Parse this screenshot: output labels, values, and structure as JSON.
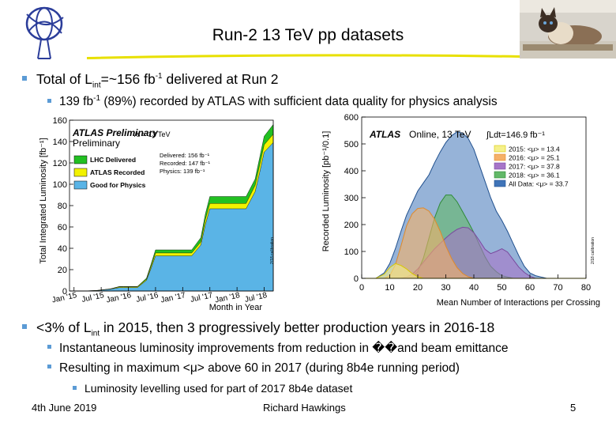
{
  "slide": {
    "title": "Run-2 13 TeV pp datasets",
    "bullets": {
      "b1_prefix": "Total of  L",
      "b1_sub": "int",
      "b1_mid": "=~156 fb",
      "b1_sup": "-1",
      "b1_suffix": " delivered at Run 2",
      "b1a_prefix": "139 fb",
      "b1a_sup": "-1",
      "b1a_suffix": " (89%) recorded by ATLAS with sufficient data quality for physics analysis",
      "b2_prefix": "<3% of L",
      "b2_sub": "int",
      "b2_suffix": " in 2015, then 3 progressively better production years in 2016-18",
      "b2a_prefix": "Instantaneous luminosity improvements from reduction in ",
      "b2a_glyph": "��",
      "b2a_suffix": "and beam emittance",
      "b2b": "Resulting in maximum <μ> above 60 in 2017 (during 8b4e running period)",
      "b2b1": "Luminosity levelling used for part of 2017 8b4e dataset"
    },
    "footer": {
      "date": "4th June 2019",
      "author": "Richard Hawkings",
      "page": "5"
    },
    "colors": {
      "bullet": "#5b9bd5",
      "title_line": "#e8e000",
      "delivered": "#22c022",
      "recorded": "#f2f200",
      "good": "#5ab4e6"
    }
  },
  "chart_data": [
    {
      "type": "area",
      "title": "ATLAS Preliminary",
      "subtitle": "√s = 13 TeV",
      "ylabel": "Total Integrated Luminosity [fb⁻¹]",
      "xlabel": "Month in Year",
      "ylim": [
        0,
        160
      ],
      "yticks": [
        "0",
        "20",
        "40",
        "60",
        "80",
        "100",
        "120",
        "140",
        "160"
      ],
      "xticks": [
        "Jan '15",
        "Jul '15",
        "Jan '16",
        "Jul '16",
        "Jan '17",
        "Jul '17",
        "Jan '18",
        "Jul '18"
      ],
      "annotations": [
        "Delivered: 156 fb⁻¹",
        "Recorded: 147 fb⁻¹",
        "Physics: 139 fb⁻¹"
      ],
      "side_label": "2/18 calibration",
      "legend": [
        "LHC Delivered",
        "ATLAS Recorded",
        "Good for Physics"
      ],
      "x": [
        0,
        3,
        6,
        9,
        11,
        12,
        15,
        17,
        18,
        19,
        24,
        27,
        29,
        30,
        31,
        36,
        39,
        41,
        42,
        43,
        45
      ],
      "series": [
        {
          "name": "LHC Delivered",
          "values": [
            0,
            0,
            0.5,
            2,
            4.2,
            4.2,
            4.2,
            12,
            25,
            38.5,
            38.5,
            38.5,
            50,
            72,
            88.5,
            88.5,
            88.5,
            105,
            125,
            145,
            156
          ]
        },
        {
          "name": "ATLAS Recorded",
          "values": [
            0,
            0,
            0.5,
            1.9,
            3.9,
            3.9,
            3.9,
            11,
            23,
            35.6,
            35.6,
            35.6,
            46,
            67,
            82,
            82,
            82,
            99,
            118,
            137,
            147
          ]
        },
        {
          "name": "Good for Physics",
          "values": [
            0,
            0,
            0.4,
            1.6,
            3.2,
            3.2,
            3.2,
            10,
            21,
            32.9,
            32.9,
            32.9,
            43,
            62,
            77,
            77,
            77,
            93,
            111,
            130,
            139
          ]
        }
      ]
    },
    {
      "type": "area",
      "title": "ATLAS",
      "subtitle": "Online, 13 TeV",
      "ltext": "∫Ldt=146.9 fb⁻¹",
      "ylabel": "Recorded Luminosity [pb⁻¹/0.1]",
      "xlabel": "Mean Number of Interactions per Crossing",
      "xlim": [
        0,
        80
      ],
      "ylim": [
        0,
        600
      ],
      "xticks": [
        "0",
        "10",
        "20",
        "30",
        "40",
        "50",
        "60",
        "70",
        "80"
      ],
      "yticks": [
        "0",
        "100",
        "200",
        "300",
        "400",
        "500",
        "600"
      ],
      "side_label": "2/18 calibration",
      "x": [
        0,
        5,
        8,
        10,
        12,
        14,
        16,
        18,
        20,
        22,
        24,
        26,
        28,
        30,
        32,
        34,
        36,
        38,
        40,
        42,
        44,
        46,
        48,
        50,
        52,
        54,
        56,
        58,
        60,
        62,
        64,
        66,
        70,
        80
      ],
      "series": [
        {
          "name": "2015: <μ> = 13.4",
          "values": [
            0,
            0,
            15,
            40,
            55,
            48,
            35,
            18,
            6,
            0,
            0,
            0,
            0,
            0,
            0,
            0,
            0,
            0,
            0,
            0,
            0,
            0,
            0,
            0,
            0,
            0,
            0,
            0,
            0,
            0,
            0,
            0,
            0,
            0
          ]
        },
        {
          "name": "2016: <μ> = 25.1",
          "values": [
            0,
            0,
            0,
            10,
            50,
            120,
            195,
            240,
            260,
            262,
            250,
            220,
            175,
            120,
            75,
            40,
            18,
            6,
            0,
            0,
            0,
            0,
            0,
            0,
            0,
            0,
            0,
            0,
            0,
            0,
            0,
            0,
            0,
            0
          ]
        },
        {
          "name": "2017: <μ> = 37.8",
          "values": [
            0,
            0,
            0,
            0,
            0,
            0,
            5,
            15,
            35,
            60,
            85,
            110,
            130,
            150,
            168,
            182,
            190,
            188,
            170,
            140,
            108,
            92,
            100,
            110,
            98,
            70,
            42,
            22,
            8,
            0,
            0,
            0,
            0,
            0
          ]
        },
        {
          "name": "2018: <μ> = 36.1",
          "values": [
            0,
            0,
            0,
            0,
            0,
            0,
            0,
            5,
            25,
            75,
            150,
            225,
            280,
            310,
            310,
            285,
            248,
            210,
            170,
            125,
            80,
            45,
            25,
            10,
            5,
            0,
            0,
            0,
            0,
            0,
            0,
            0,
            0,
            0
          ]
        },
        {
          "name": "All Data: <μ> = 33.7",
          "values": [
            0,
            0,
            20,
            55,
            110,
            175,
            235,
            280,
            325,
            355,
            385,
            430,
            470,
            505,
            530,
            545,
            540,
            520,
            480,
            420,
            360,
            300,
            250,
            215,
            175,
            130,
            85,
            45,
            20,
            10,
            5,
            0,
            0,
            0
          ]
        }
      ]
    }
  ]
}
